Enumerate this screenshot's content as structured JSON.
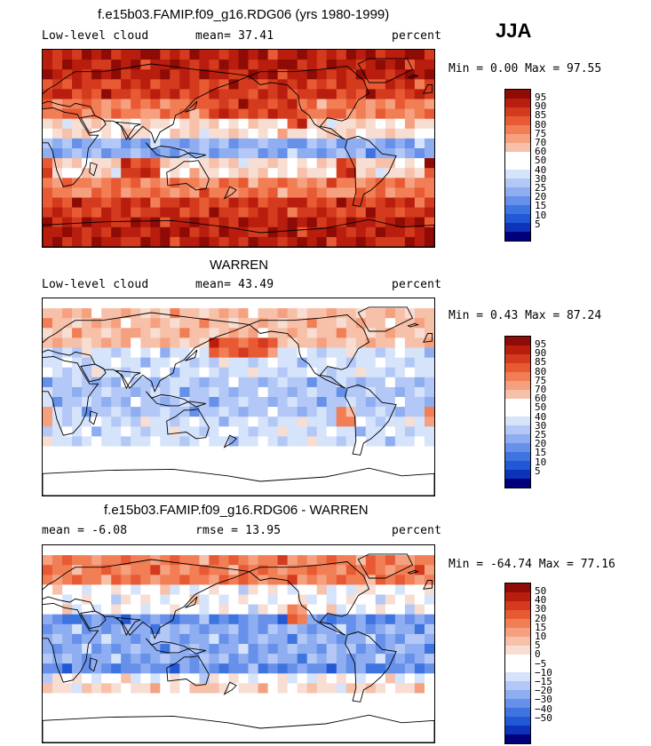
{
  "season": "JJA",
  "colors": {
    "scale": [
      "#00007d",
      "#0d33b8",
      "#2158d6",
      "#3e74e0",
      "#6690e9",
      "#8eaef1",
      "#b3c8f6",
      "#d5e3fb",
      "#ffffff",
      "#f7ddd2",
      "#f7c0a8",
      "#f5a07f",
      "#f27e56",
      "#e85a34",
      "#d43a1d",
      "#b81d0e",
      "#8f0b05"
    ]
  },
  "panels": [
    {
      "title": "f.e15b03.FAMIP.f09_g16.RDG06 (yrs 1980-1999)",
      "left_label": "Low-level cloud",
      "mean_label": "mean=  37.41",
      "right_label": "percent",
      "minmax": "Min =   0.00 Max =  97.55",
      "colorbar_labels": [
        "95",
        "90",
        "85",
        "80",
        "75",
        "70",
        "60",
        "50",
        "40",
        "30",
        "25",
        "20",
        "15",
        "10",
        "5"
      ],
      "fill_mode": "model"
    },
    {
      "title": "WARREN",
      "left_label": "Low-level cloud",
      "mean_label": "mean=  43.49",
      "right_label": "percent",
      "minmax": "Min =   0.43 Max =  87.24",
      "colorbar_labels": [
        "95",
        "90",
        "85",
        "80",
        "75",
        "70",
        "60",
        "50",
        "40",
        "30",
        "25",
        "20",
        "15",
        "10",
        "5"
      ],
      "fill_mode": "obs"
    },
    {
      "title": "f.e15b03.FAMIP.f09_g16.RDG06 - WARREN",
      "left_label": "mean =  -6.08",
      "mean_label": "rmse =  13.95",
      "right_label": "percent",
      "minmax": "Min = -64.74 Max =  77.16",
      "colorbar_labels": [
        "50",
        "40",
        "30",
        "20",
        "15",
        "10",
        "5",
        "0",
        "−5",
        "−10",
        "−15",
        "−20",
        "−30",
        "−40",
        "−50"
      ],
      "fill_mode": "diff"
    }
  ]
}
